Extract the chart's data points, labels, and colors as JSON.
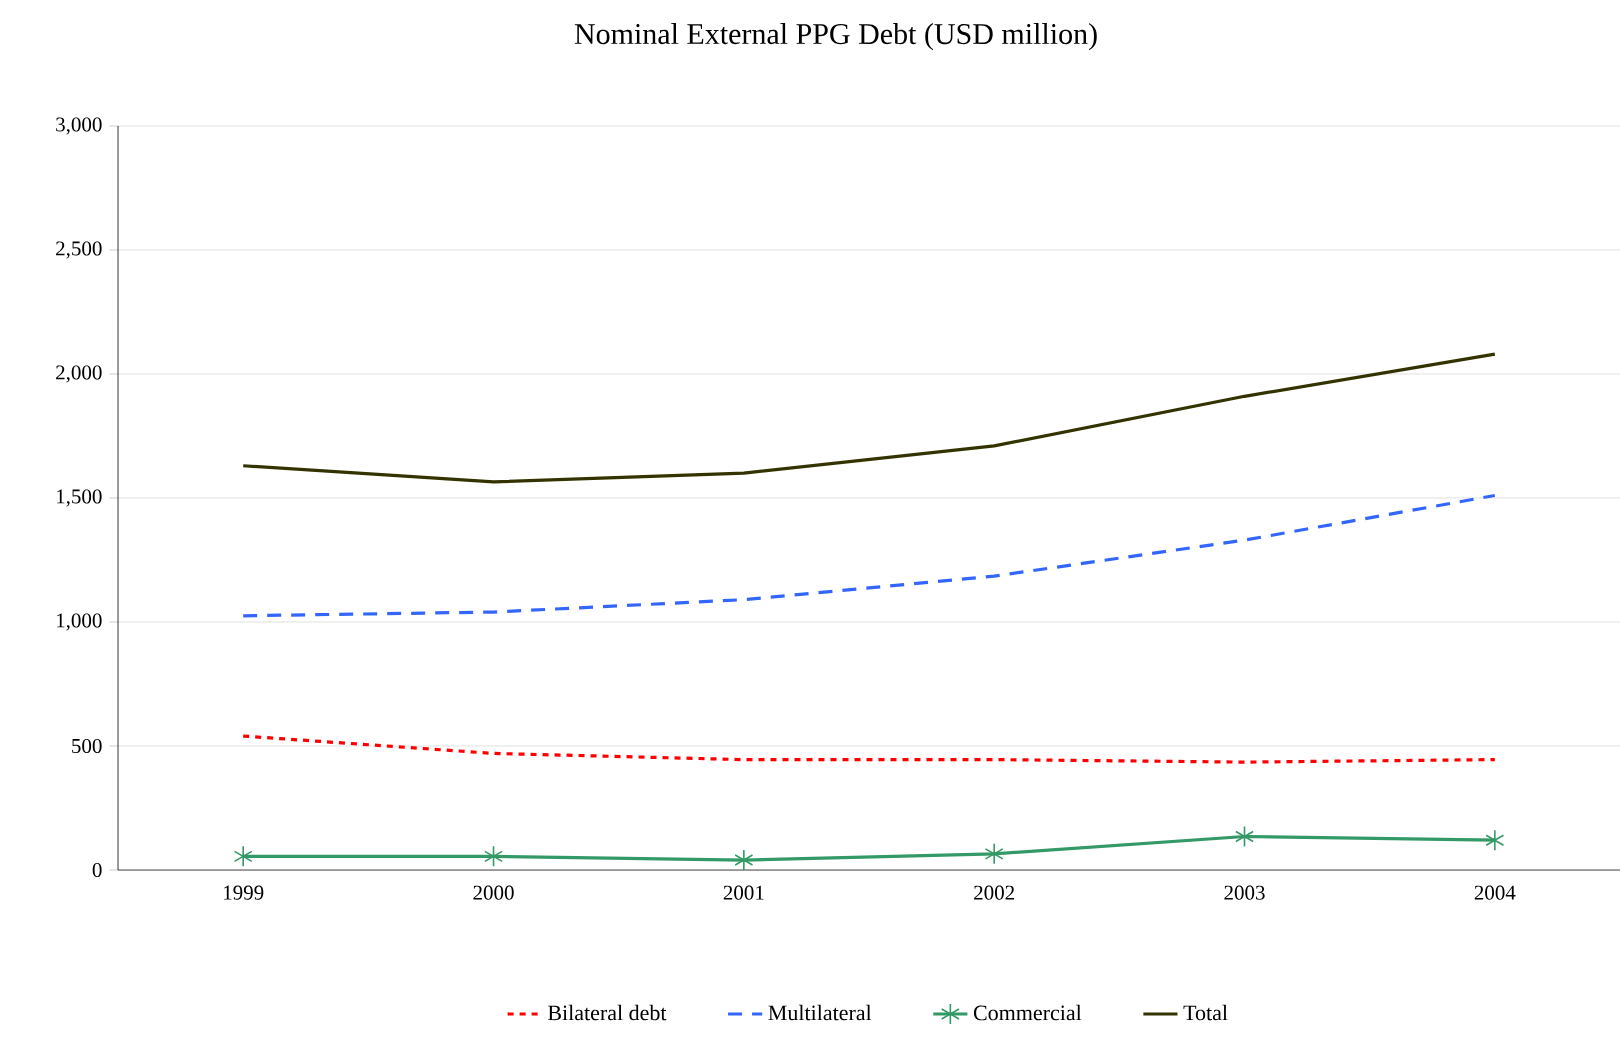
{
  "chart_data": {
    "type": "line",
    "title": "Nominal External PPG Debt (USD million)",
    "categories": [
      "1999",
      "2000",
      "2001",
      "2002",
      "2003",
      "2004"
    ],
    "series": [
      {
        "name": "Bilateral debt",
        "color": "#ff0000",
        "line_style": "dotted",
        "marker": "none",
        "values": [
          540,
          470,
          445,
          445,
          435,
          445
        ]
      },
      {
        "name": "Multilateral",
        "color": "#3366ff",
        "line_style": "dashed",
        "marker": "none",
        "values": [
          1025,
          1040,
          1090,
          1185,
          1330,
          1510
        ]
      },
      {
        "name": "Commercial",
        "color": "#339966",
        "line_style": "solid",
        "marker": "cross",
        "values": [
          55,
          55,
          40,
          65,
          135,
          120
        ]
      },
      {
        "name": "Total",
        "color": "#333300",
        "line_style": "solid",
        "marker": "none",
        "values": [
          1630,
          1565,
          1600,
          1710,
          1910,
          2080
        ]
      }
    ],
    "ylim": [
      0,
      3000
    ],
    "yticks": [
      {
        "value": 0,
        "label": "0"
      },
      {
        "value": 500,
        "label": "500"
      },
      {
        "value": 1000,
        "label": "1,000"
      },
      {
        "value": 1500,
        "label": "1,500"
      },
      {
        "value": 2000,
        "label": "2,000"
      },
      {
        "value": 2500,
        "label": "2,500"
      },
      {
        "value": 3000,
        "label": "3,000"
      }
    ],
    "grid": "y",
    "legend": "bottom"
  }
}
